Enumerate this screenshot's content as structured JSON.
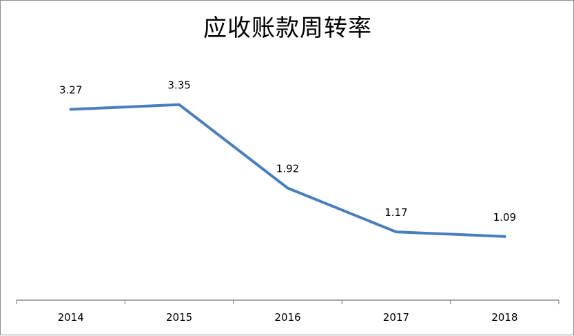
{
  "chart_data": {
    "type": "line",
    "title": "应收账款周转率",
    "categories": [
      "2014",
      "2015",
      "2016",
      "2017",
      "2018"
    ],
    "series": [
      {
        "values": [
          3.27,
          3.35,
          1.92,
          1.17,
          1.09
        ],
        "color": "#4a7ebb"
      }
    ],
    "data_labels": [
      "3.27",
      "3.35",
      "1.92",
      "1.17",
      "1.09"
    ],
    "xlabel": "",
    "ylabel": "",
    "ylim": [
      0,
      4.6
    ],
    "grid": false,
    "legend": "none",
    "axis_color": "#8c8c8c"
  }
}
